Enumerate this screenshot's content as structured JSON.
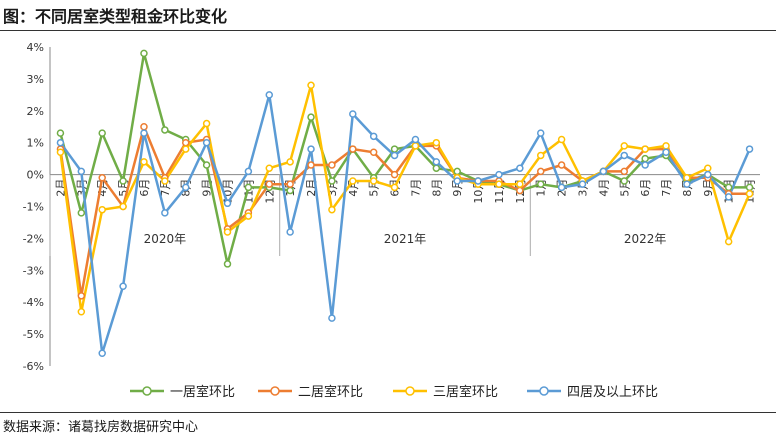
{
  "title": "图：不同居室类型租金环比变化",
  "source": "数据来源：诸葛找房数据研究中心",
  "chart_data": {
    "type": "line",
    "title": "图：不同居室类型租金环比变化",
    "xlabel": "",
    "ylabel": "",
    "y_ticks": [
      "4%",
      "3%",
      "2%",
      "1%",
      "0%",
      "-1%",
      "-2%",
      "-3%",
      "-4%",
      "-5%",
      "-6%"
    ],
    "ylim": [
      -6,
      4
    ],
    "grid": false,
    "legend_position": "bottom",
    "x": [
      "2月",
      "3月",
      "4月",
      "5月",
      "6月",
      "7月",
      "8月",
      "9月",
      "10月",
      "11月",
      "12月",
      "1月",
      "2月",
      "3月",
      "4月",
      "5月",
      "6月",
      "7月",
      "8月",
      "9月",
      "10月",
      "11月",
      "12月",
      "1月",
      "2月",
      "3月",
      "4月",
      "5月",
      "6月",
      "7月",
      "8月",
      "9月",
      "10月",
      "11月"
    ],
    "years": [
      {
        "label": "2020年",
        "start": 0,
        "end": 10
      },
      {
        "label": "2021年",
        "start": 11,
        "end": 22
      },
      {
        "label": "2022年",
        "start": 23,
        "end": 33
      }
    ],
    "series": [
      {
        "name": "一居室环比",
        "color": "#70AD47",
        "values": [
          1.3,
          -1.2,
          1.3,
          -0.2,
          3.8,
          1.4,
          1.1,
          0.3,
          -2.8,
          -0.4,
          -0.4,
          -0.5,
          1.8,
          -0.2,
          0.8,
          -0.1,
          0.8,
          0.9,
          0.2,
          0.1,
          -0.2,
          -0.3,
          -0.5,
          -0.3,
          -0.4,
          -0.2,
          0.1,
          -0.2,
          0.5,
          0.6,
          -0.2,
          0.0,
          -0.4,
          -0.4
        ]
      },
      {
        "name": "二居室环比",
        "color": "#ED7D31",
        "values": [
          0.8,
          -3.8,
          -0.1,
          -1.0,
          1.5,
          -0.1,
          1.0,
          1.1,
          -1.7,
          -1.2,
          -0.3,
          -0.3,
          0.3,
          0.3,
          0.8,
          0.7,
          0.0,
          0.9,
          0.9,
          -0.1,
          -0.2,
          -0.2,
          -0.5,
          0.1,
          0.3,
          -0.2,
          0.1,
          0.1,
          0.8,
          0.8,
          -0.1,
          -0.1,
          -0.6,
          -0.6
        ]
      },
      {
        "name": "三居室环比",
        "color": "#FFC000",
        "values": [
          0.7,
          -4.3,
          -1.1,
          -1.0,
          0.4,
          -0.2,
          0.8,
          1.6,
          -1.8,
          -1.3,
          0.2,
          0.4,
          2.8,
          -1.1,
          -0.2,
          -0.2,
          -0.4,
          0.9,
          1.0,
          -0.1,
          -0.3,
          -0.3,
          -0.3,
          0.6,
          1.1,
          -0.2,
          0.1,
          0.9,
          0.8,
          0.9,
          -0.1,
          0.2,
          -2.1,
          -0.6
        ]
      },
      {
        "name": "四居及以上环比",
        "color": "#5B9BD5",
        "values": [
          1.0,
          0.1,
          -5.6,
          -3.5,
          1.3,
          -1.2,
          -0.4,
          1.0,
          -0.9,
          0.1,
          2.5,
          -1.8,
          0.8,
          -4.5,
          1.9,
          1.2,
          0.6,
          1.1,
          0.4,
          -0.2,
          -0.2,
          0.0,
          0.2,
          1.3,
          -0.4,
          -0.3,
          0.1,
          0.6,
          0.3,
          0.7,
          -0.3,
          0.0,
          -0.7,
          0.8
        ]
      }
    ]
  }
}
